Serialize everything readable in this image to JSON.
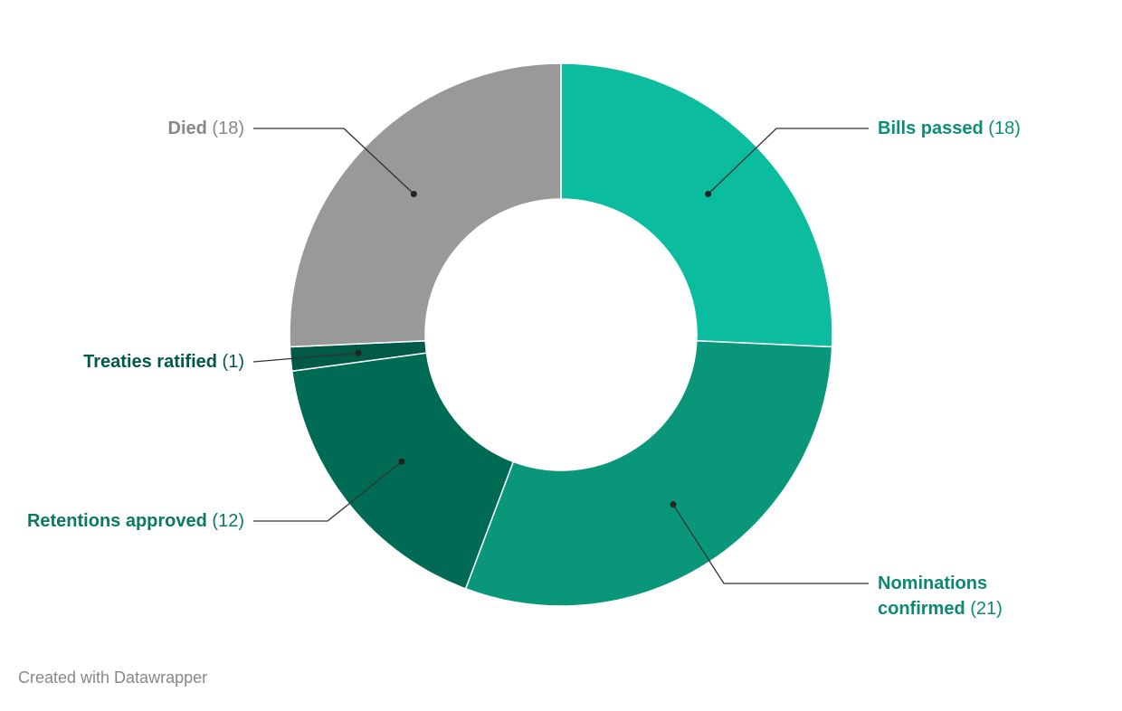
{
  "chart_data": {
    "type": "donut",
    "categories": [
      "Bills passed",
      "Nominations confirmed",
      "Retentions approved",
      "Treaties ratified",
      "Died"
    ],
    "values": [
      18,
      21,
      12,
      1,
      18
    ],
    "value_labels": [
      "(18)",
      "(21)",
      "(12)",
      "(1)",
      "(18)"
    ],
    "colors": [
      "#0bbc9f",
      "#0a9679",
      "#006b54",
      "#005a45",
      "#999999"
    ],
    "label_colors": [
      "#0a8f73",
      "#0a8a6f",
      "#0a7a5e",
      "#005a45",
      "#888888"
    ]
  },
  "credit": "Created with Datawrapper"
}
